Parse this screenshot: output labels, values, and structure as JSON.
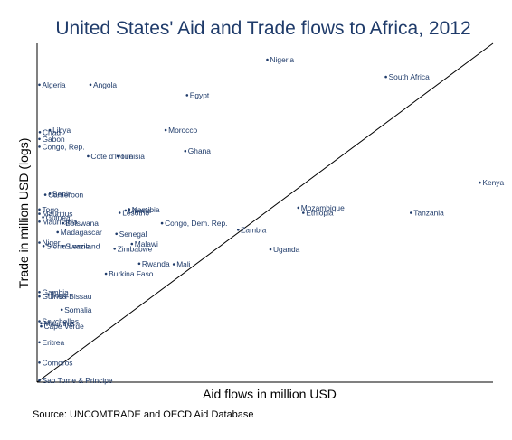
{
  "chart_data": {
    "type": "scatter",
    "title": "United States' Aid and Trade flows to Africa, 2012",
    "xlabel": "Aid flows in million USD",
    "ylabel": "Trade in million USD (logs)",
    "source": "Source:  UNCOMTRADE and OECD Aid Database",
    "xlim": [
      0,
      1
    ],
    "ylim": [
      0,
      1
    ],
    "grid": false,
    "reference_line": "45-degree line",
    "colors": {
      "points": "#1f3b6a",
      "title": "#1f3b6a",
      "line": "#000000"
    },
    "points": [
      {
        "label": "Nigeria",
        "x": 0.505,
        "y": 0.952
      },
      {
        "label": "South Africa",
        "x": 0.765,
        "y": 0.901
      },
      {
        "label": "Algeria",
        "x": 0.005,
        "y": 0.878
      },
      {
        "label": "Angola",
        "x": 0.117,
        "y": 0.878
      },
      {
        "label": "Egypt",
        "x": 0.329,
        "y": 0.847
      },
      {
        "label": "Morocco",
        "x": 0.282,
        "y": 0.744
      },
      {
        "label": "Libya",
        "x": 0.028,
        "y": 0.744
      },
      {
        "label": "Chad",
        "x": 0.006,
        "y": 0.738
      },
      {
        "label": "Gabon",
        "x": 0.005,
        "y": 0.718
      },
      {
        "label": "Congo, Rep.",
        "x": 0.005,
        "y": 0.695
      },
      {
        "label": "Ghana",
        "x": 0.325,
        "y": 0.682
      },
      {
        "label": "Cote d'Ivoire",
        "x": 0.112,
        "y": 0.667
      },
      {
        "label": "Tunisia",
        "x": 0.177,
        "y": 0.667
      },
      {
        "label": "Kenya",
        "x": 0.971,
        "y": 0.589
      },
      {
        "label": "Benin",
        "x": 0.028,
        "y": 0.556
      },
      {
        "label": "Cameroon",
        "x": 0.018,
        "y": 0.553
      },
      {
        "label": "Mozambique",
        "x": 0.573,
        "y": 0.515
      },
      {
        "label": "Ethiopia",
        "x": 0.584,
        "y": 0.5
      },
      {
        "label": "Tanzania",
        "x": 0.82,
        "y": 0.5
      },
      {
        "label": "Namibia",
        "x": 0.202,
        "y": 0.51
      },
      {
        "label": "Liberia",
        "x": 0.194,
        "y": 0.507
      },
      {
        "label": "Lesotho",
        "x": 0.181,
        "y": 0.5
      },
      {
        "label": "Togo",
        "x": 0.005,
        "y": 0.51
      },
      {
        "label": "Mauritius",
        "x": 0.005,
        "y": 0.497
      },
      {
        "label": "Guinea",
        "x": 0.013,
        "y": 0.487
      },
      {
        "label": "Mauritania",
        "x": 0.005,
        "y": 0.474
      },
      {
        "label": "Botswana",
        "x": 0.056,
        "y": 0.469
      },
      {
        "label": "Congo, Dem. Rep.",
        "x": 0.274,
        "y": 0.469
      },
      {
        "label": "Zambia",
        "x": 0.441,
        "y": 0.45
      },
      {
        "label": "Madagascar",
        "x": 0.045,
        "y": 0.443
      },
      {
        "label": "Senegal",
        "x": 0.174,
        "y": 0.438
      },
      {
        "label": "Malawi",
        "x": 0.208,
        "y": 0.408
      },
      {
        "label": "Niger",
        "x": 0.005,
        "y": 0.412
      },
      {
        "label": "Sierra Leone",
        "x": 0.014,
        "y": 0.402
      },
      {
        "label": "Swaziland",
        "x": 0.056,
        "y": 0.402
      },
      {
        "label": "Zimbabwe",
        "x": 0.17,
        "y": 0.394
      },
      {
        "label": "Uganda",
        "x": 0.512,
        "y": 0.392
      },
      {
        "label": "Rwanda",
        "x": 0.224,
        "y": 0.35
      },
      {
        "label": "Mali",
        "x": 0.3,
        "y": 0.348
      },
      {
        "label": "Burkina Faso",
        "x": 0.151,
        "y": 0.32
      },
      {
        "label": "Gambia",
        "x": 0.005,
        "y": 0.266
      },
      {
        "label": "Togo",
        "x": 0.025,
        "y": 0.258
      },
      {
        "label": "Guinea-Bissau",
        "x": 0.005,
        "y": 0.253
      },
      {
        "label": "Somalia",
        "x": 0.054,
        "y": 0.214
      },
      {
        "label": "Seychelles",
        "x": 0.005,
        "y": 0.18
      },
      {
        "label": "Mauritius",
        "x": 0.009,
        "y": 0.174
      },
      {
        "label": "Cape Verde",
        "x": 0.009,
        "y": 0.165
      },
      {
        "label": "Eritrea",
        "x": 0.005,
        "y": 0.118
      },
      {
        "label": "Comoros",
        "x": 0.005,
        "y": 0.058
      },
      {
        "label": "Sao Tome & Principe",
        "x": 0.005,
        "y": 0.005
      }
    ]
  }
}
